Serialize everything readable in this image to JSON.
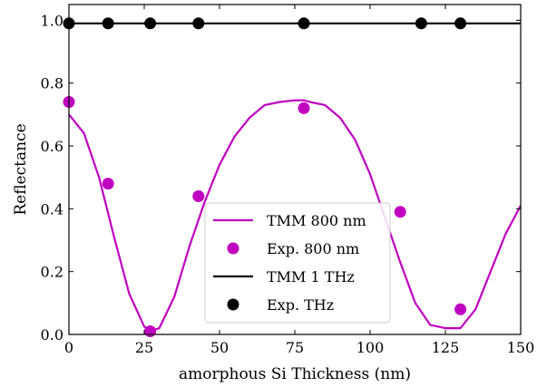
{
  "chart_data": {
    "type": "line",
    "xlabel": "amorphous Si Thickness (nm)",
    "ylabel": "Reflectance",
    "xlim": [
      0,
      150
    ],
    "ylim": [
      0.0,
      1.05
    ],
    "xticks": [
      0,
      25,
      50,
      75,
      100,
      125,
      150
    ],
    "xtick_labels": [
      "0",
      "25",
      "50",
      "75",
      "100",
      "125",
      "150"
    ],
    "yticks": [
      0.0,
      0.2,
      0.4,
      0.6,
      0.8,
      1.0
    ],
    "ytick_labels": [
      "0.0",
      "0.2",
      "0.4",
      "0.6",
      "0.8",
      "1.0"
    ],
    "grid": false,
    "legend_position": "lower-center",
    "colors": {
      "magenta": "#c000c0",
      "black": "#000000"
    },
    "series": [
      {
        "name": "TMM 800 nm",
        "kind": "line",
        "color": "#c000c0",
        "x": [
          0,
          5,
          10,
          15,
          20,
          25,
          27,
          30,
          35,
          40,
          45,
          50,
          55,
          60,
          65,
          70,
          75,
          78,
          80,
          85,
          90,
          95,
          100,
          105,
          110,
          115,
          120,
          125,
          130,
          135,
          140,
          145,
          150
        ],
        "y": [
          0.7,
          0.64,
          0.5,
          0.31,
          0.13,
          0.025,
          0.01,
          0.02,
          0.12,
          0.28,
          0.42,
          0.54,
          0.63,
          0.69,
          0.73,
          0.74,
          0.745,
          0.745,
          0.74,
          0.73,
          0.69,
          0.62,
          0.51,
          0.37,
          0.23,
          0.1,
          0.03,
          0.02,
          0.02,
          0.08,
          0.2,
          0.32,
          0.41
        ]
      },
      {
        "name": "Exp. 800 nm",
        "kind": "scatter",
        "color": "#c000c0",
        "x": [
          0,
          13,
          27,
          43,
          78,
          110,
          130
        ],
        "y": [
          0.74,
          0.48,
          0.01,
          0.44,
          0.72,
          0.39,
          0.08
        ]
      },
      {
        "name": "TMM 1 THz",
        "kind": "line",
        "color": "#000000",
        "x": [
          0,
          150
        ],
        "y": [
          0.99,
          0.99
        ]
      },
      {
        "name": "Exp. THz",
        "kind": "scatter",
        "color": "#000000",
        "x": [
          0,
          13,
          27,
          43,
          78,
          117,
          130
        ],
        "y": [
          0.99,
          0.99,
          0.99,
          0.99,
          0.99,
          0.99,
          0.99
        ]
      }
    ]
  }
}
